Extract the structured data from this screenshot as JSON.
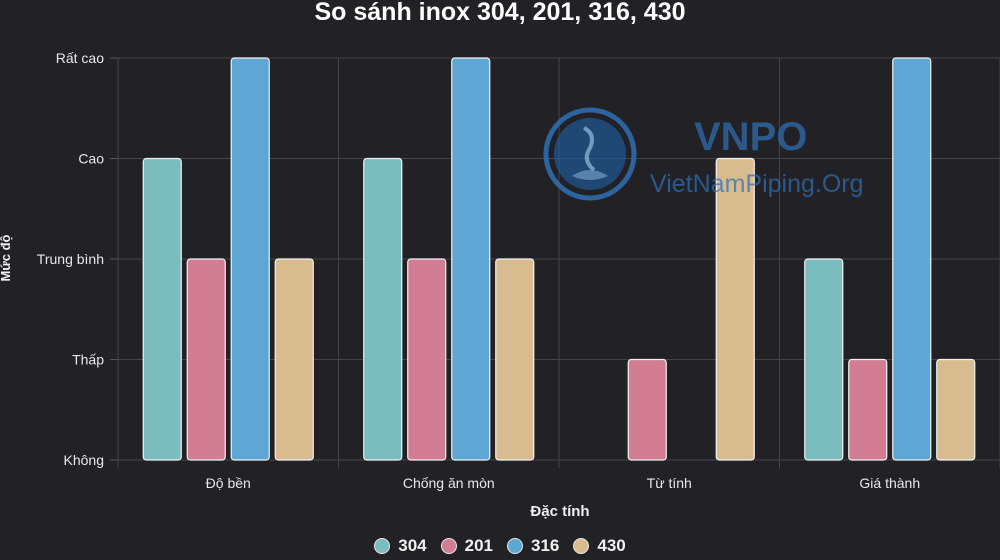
{
  "chart_data": {
    "type": "bar",
    "title": "So sánh inox 304, 201, 316, 430",
    "xlabel": "Đặc tính",
    "ylabel": "Mức độ",
    "categories": [
      "Độ bền",
      "Chống ăn mòn",
      "Từ tính",
      "Giá thành"
    ],
    "y_ticks": [
      "Không",
      "Thấp",
      "Trung bình",
      "Cao",
      "Rất cao"
    ],
    "ylim": [
      0,
      4
    ],
    "series": [
      {
        "name": "304",
        "color": "#7bbcbf",
        "values": [
          3,
          3,
          0,
          2
        ]
      },
      {
        "name": "201",
        "color": "#d27d93",
        "values": [
          2,
          2,
          1,
          1
        ]
      },
      {
        "name": "316",
        "color": "#5ea6d3",
        "values": [
          4,
          4,
          0,
          4
        ]
      },
      {
        "name": "430",
        "color": "#d8bc8f",
        "values": [
          2,
          2,
          3,
          1
        ]
      }
    ],
    "grid": true,
    "legend_position": "bottom"
  },
  "watermark": {
    "brand": "VNPO",
    "site": "VietNamPiping.Org"
  }
}
